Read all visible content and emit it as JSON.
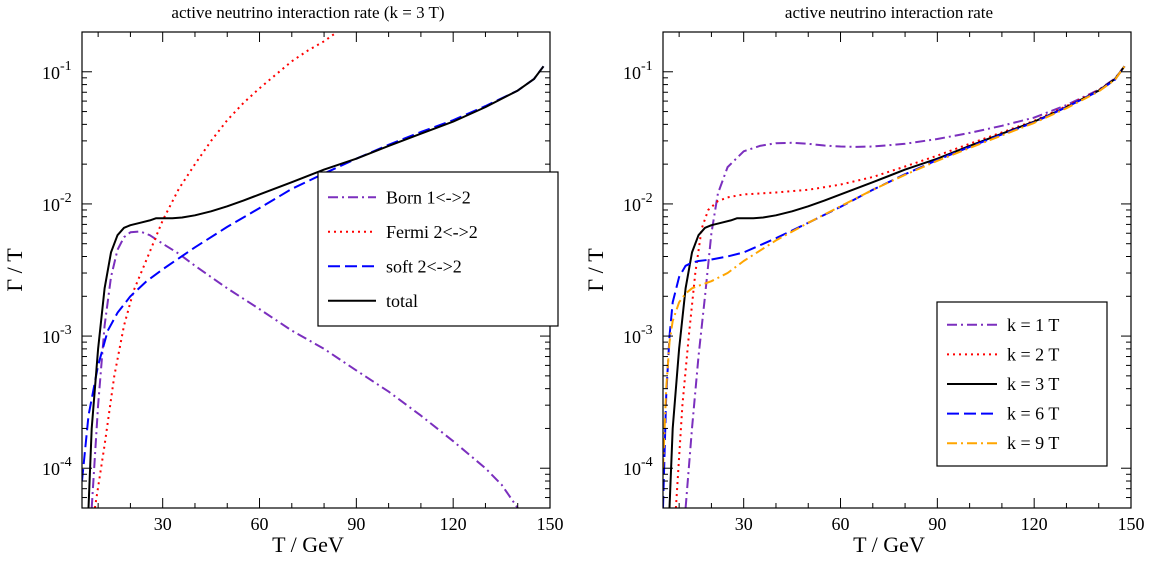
{
  "chart_data": [
    {
      "type": "line",
      "title": "active neutrino interaction rate (k = 3 T)",
      "xlabel": "T / GeV",
      "ylabel": "Γ / T",
      "xlim": [
        5,
        150
      ],
      "ylim": [
        5e-05,
        0.2
      ],
      "yscale": "log",
      "xticks": [
        30,
        60,
        90,
        120,
        150
      ],
      "yticks": [
        {
          "value": 0.0001,
          "label": "10",
          "exp": "-4"
        },
        {
          "value": 0.001,
          "label": "10",
          "exp": "-3"
        },
        {
          "value": 0.01,
          "label": "10",
          "exp": "-2"
        },
        {
          "value": 0.1,
          "label": "10",
          "exp": "-1"
        }
      ],
      "grid": false,
      "legend": "center-right",
      "series": [
        {
          "name": "Born 1<->2",
          "color": "#7b2fbe",
          "dash": "dashdot",
          "points": [
            [
              8,
              5e-05
            ],
            [
              10,
              0.0003
            ],
            [
              12,
              0.0012
            ],
            [
              14,
              0.0028
            ],
            [
              16,
              0.0045
            ],
            [
              18,
              0.0056
            ],
            [
              20,
              0.0061
            ],
            [
              23,
              0.0062
            ],
            [
              26,
              0.0058
            ],
            [
              30,
              0.005
            ],
            [
              35,
              0.0042
            ],
            [
              40,
              0.0034
            ],
            [
              50,
              0.0023
            ],
            [
              60,
              0.0016
            ],
            [
              70,
              0.0011
            ],
            [
              80,
              0.0008
            ],
            [
              90,
              0.00055
            ],
            [
              100,
              0.00038
            ],
            [
              110,
              0.00025
            ],
            [
              120,
              0.00016
            ],
            [
              130,
              0.0001
            ],
            [
              135,
              7.5e-05
            ],
            [
              140,
              5e-05
            ]
          ]
        },
        {
          "name": "Fermi 2<->2",
          "color": "#ff0000",
          "dash": "dotted",
          "points": [
            [
              9,
              5e-05
            ],
            [
              12,
              0.00015
            ],
            [
              15,
              0.0005
            ],
            [
              18,
              0.0012
            ],
            [
              21,
              0.0022
            ],
            [
              25,
              0.0038
            ],
            [
              30,
              0.0075
            ],
            [
              35,
              0.013
            ],
            [
              40,
              0.02
            ],
            [
              45,
              0.03
            ],
            [
              50,
              0.043
            ],
            [
              55,
              0.058
            ],
            [
              60,
              0.075
            ],
            [
              65,
              0.095
            ],
            [
              70,
              0.12
            ],
            [
              75,
              0.145
            ],
            [
              80,
              0.17
            ],
            [
              84,
              0.2
            ]
          ]
        },
        {
          "name": "soft 2<->2",
          "color": "#0000ff",
          "dash": "dashed",
          "points": [
            [
              5,
              8e-05
            ],
            [
              7,
              0.00025
            ],
            [
              10,
              0.0006
            ],
            [
              13,
              0.0011
            ],
            [
              16,
              0.0015
            ],
            [
              20,
              0.002
            ],
            [
              25,
              0.0026
            ],
            [
              30,
              0.0032
            ],
            [
              40,
              0.0047
            ],
            [
              50,
              0.0067
            ],
            [
              60,
              0.0093
            ],
            [
              70,
              0.013
            ],
            [
              80,
              0.017
            ],
            [
              90,
              0.022
            ],
            [
              100,
              0.028
            ],
            [
              110,
              0.035
            ],
            [
              120,
              0.043
            ],
            [
              130,
              0.055
            ],
            [
              140,
              0.072
            ],
            [
              145,
              0.088
            ],
            [
              148,
              0.11
            ]
          ]
        },
        {
          "name": "total",
          "color": "#000000",
          "dash": "solid",
          "points": [
            [
              7,
              5e-05
            ],
            [
              8,
              0.0002
            ],
            [
              10,
              0.0008
            ],
            [
              12,
              0.0023
            ],
            [
              14,
              0.0043
            ],
            [
              16,
              0.0058
            ],
            [
              18,
              0.0066
            ],
            [
              20,
              0.0069
            ],
            [
              23,
              0.0072
            ],
            [
              26,
              0.0075
            ],
            [
              28,
              0.0078
            ],
            [
              30,
              0.0078
            ],
            [
              33,
              0.0078
            ],
            [
              36,
              0.0079
            ],
            [
              40,
              0.0082
            ],
            [
              45,
              0.0088
            ],
            [
              50,
              0.0096
            ],
            [
              55,
              0.0106
            ],
            [
              60,
              0.0118
            ],
            [
              70,
              0.0146
            ],
            [
              80,
              0.0182
            ],
            [
              90,
              0.022
            ],
            [
              100,
              0.0275
            ],
            [
              110,
              0.034
            ],
            [
              120,
              0.042
            ],
            [
              130,
              0.054
            ],
            [
              140,
              0.072
            ],
            [
              145,
              0.088
            ],
            [
              148,
              0.11
            ]
          ]
        }
      ]
    },
    {
      "type": "line",
      "title": "active neutrino interaction rate",
      "xlabel": "T / GeV",
      "ylabel": "Γ / T",
      "xlim": [
        5,
        150
      ],
      "ylim": [
        5e-05,
        0.2
      ],
      "yscale": "log",
      "xticks": [
        30,
        60,
        90,
        120,
        150
      ],
      "yticks": [
        {
          "value": 0.0001,
          "label": "10",
          "exp": "-4"
        },
        {
          "value": 0.001,
          "label": "10",
          "exp": "-3"
        },
        {
          "value": 0.01,
          "label": "10",
          "exp": "-2"
        },
        {
          "value": 0.1,
          "label": "10",
          "exp": "-1"
        }
      ],
      "grid": false,
      "legend": "bottom-right",
      "series": [
        {
          "name": "k = 1 T",
          "color": "#7b2fbe",
          "dash": "dashdot",
          "points": [
            [
              12,
              5e-05
            ],
            [
              14,
              0.0002
            ],
            [
              16,
              0.0007
            ],
            [
              18,
              0.002
            ],
            [
              20,
              0.006
            ],
            [
              22,
              0.012
            ],
            [
              25,
              0.019
            ],
            [
              30,
              0.025
            ],
            [
              35,
              0.0275
            ],
            [
              40,
              0.0288
            ],
            [
              45,
              0.029
            ],
            [
              50,
              0.0285
            ],
            [
              55,
              0.0277
            ],
            [
              60,
              0.0272
            ],
            [
              65,
              0.027
            ],
            [
              70,
              0.0272
            ],
            [
              80,
              0.0285
            ],
            [
              90,
              0.031
            ],
            [
              100,
              0.0345
            ],
            [
              110,
              0.039
            ],
            [
              120,
              0.045
            ],
            [
              130,
              0.056
            ],
            [
              140,
              0.073
            ],
            [
              145,
              0.089
            ],
            [
              148,
              0.11
            ]
          ]
        },
        {
          "name": "k = 2 T",
          "color": "#ff0000",
          "dash": "dotted",
          "points": [
            [
              9,
              5e-05
            ],
            [
              11,
              0.0003
            ],
            [
              13,
              0.001
            ],
            [
              15,
              0.003
            ],
            [
              17,
              0.0065
            ],
            [
              19,
              0.009
            ],
            [
              22,
              0.0105
            ],
            [
              25,
              0.0112
            ],
            [
              30,
              0.0118
            ],
            [
              35,
              0.012
            ],
            [
              40,
              0.0122
            ],
            [
              50,
              0.0128
            ],
            [
              60,
              0.014
            ],
            [
              70,
              0.016
            ],
            [
              80,
              0.0192
            ],
            [
              90,
              0.0232
            ],
            [
              100,
              0.0285
            ],
            [
              110,
              0.0348
            ],
            [
              120,
              0.0425
            ],
            [
              130,
              0.055
            ],
            [
              140,
              0.0725
            ],
            [
              145,
              0.088
            ],
            [
              148,
              0.11
            ]
          ]
        },
        {
          "name": "k = 3 T",
          "color": "#000000",
          "dash": "solid",
          "points": [
            [
              7,
              5e-05
            ],
            [
              8,
              0.0002
            ],
            [
              10,
              0.0008
            ],
            [
              12,
              0.0023
            ],
            [
              14,
              0.0043
            ],
            [
              16,
              0.0058
            ],
            [
              18,
              0.0066
            ],
            [
              20,
              0.0069
            ],
            [
              23,
              0.0072
            ],
            [
              26,
              0.0075
            ],
            [
              28,
              0.0078
            ],
            [
              30,
              0.0078
            ],
            [
              33,
              0.0078
            ],
            [
              36,
              0.0079
            ],
            [
              40,
              0.0082
            ],
            [
              45,
              0.0088
            ],
            [
              50,
              0.0096
            ],
            [
              55,
              0.0106
            ],
            [
              60,
              0.0118
            ],
            [
              70,
              0.0146
            ],
            [
              80,
              0.0182
            ],
            [
              90,
              0.022
            ],
            [
              100,
              0.0275
            ],
            [
              110,
              0.034
            ],
            [
              120,
              0.042
            ],
            [
              130,
              0.054
            ],
            [
              140,
              0.072
            ],
            [
              145,
              0.088
            ],
            [
              148,
              0.11
            ]
          ]
        },
        {
          "name": "k = 6 T",
          "color": "#0000ff",
          "dash": "dashed",
          "points": [
            [
              5,
              5e-05
            ],
            [
              6,
              0.00035
            ],
            [
              7,
              0.001
            ],
            [
              8,
              0.0018
            ],
            [
              10,
              0.0028
            ],
            [
              12,
              0.0034
            ],
            [
              14,
              0.0036
            ],
            [
              16,
              0.0037
            ],
            [
              20,
              0.0038
            ],
            [
              25,
              0.004
            ],
            [
              30,
              0.0043
            ],
            [
              40,
              0.0055
            ],
            [
              50,
              0.0072
            ],
            [
              60,
              0.0095
            ],
            [
              70,
              0.0128
            ],
            [
              80,
              0.0168
            ],
            [
              90,
              0.0215
            ],
            [
              100,
              0.027
            ],
            [
              110,
              0.0335
            ],
            [
              120,
              0.0415
            ],
            [
              130,
              0.054
            ],
            [
              140,
              0.0715
            ],
            [
              145,
              0.087
            ],
            [
              148,
              0.11
            ]
          ]
        },
        {
          "name": "k = 9 T",
          "color": "#ffa500",
          "dash": "dashdot",
          "points": [
            [
              5,
              0.0001
            ],
            [
              6,
              0.0004
            ],
            [
              7,
              0.0009
            ],
            [
              8,
              0.0013
            ],
            [
              10,
              0.0018
            ],
            [
              12,
              0.0021
            ],
            [
              14,
              0.0023
            ],
            [
              16,
              0.0024
            ],
            [
              20,
              0.0026
            ],
            [
              25,
              0.003
            ],
            [
              30,
              0.0037
            ],
            [
              40,
              0.0053
            ],
            [
              50,
              0.0072
            ],
            [
              60,
              0.0096
            ],
            [
              70,
              0.0128
            ],
            [
              80,
              0.0166
            ],
            [
              90,
              0.0212
            ],
            [
              100,
              0.0265
            ],
            [
              110,
              0.033
            ],
            [
              120,
              0.041
            ],
            [
              130,
              0.053
            ],
            [
              140,
              0.071
            ],
            [
              145,
              0.087
            ],
            [
              148,
              0.11
            ]
          ]
        }
      ]
    }
  ]
}
